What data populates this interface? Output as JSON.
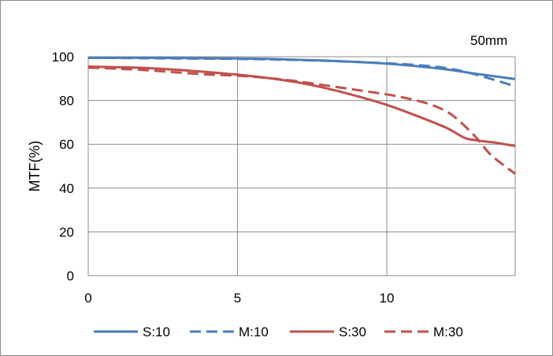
{
  "chart_data": {
    "type": "line",
    "annotation": "50mm",
    "ylabel": "MTF(%)",
    "xlim": [
      0,
      14.3
    ],
    "ylim": [
      0,
      100
    ],
    "x_ticks": [
      0,
      5,
      10
    ],
    "y_ticks": [
      0,
      20,
      40,
      60,
      80,
      100
    ],
    "grid": true,
    "legend_position": "bottom",
    "series": [
      {
        "name": "S:10",
        "color": "#4a7ebb",
        "dash": "solid",
        "x": [
          0,
          1,
          2,
          3,
          4,
          5,
          6,
          7,
          8,
          9,
          10,
          11,
          12,
          13,
          14.3
        ],
        "y": [
          99.5,
          99.5,
          99.5,
          99.4,
          99.3,
          99.2,
          99.0,
          98.6,
          98.2,
          97.6,
          96.8,
          95.7,
          94.2,
          92.2,
          89.8
        ]
      },
      {
        "name": "M:10",
        "color": "#4a7ebb",
        "dash": "dashed",
        "x": [
          0,
          1,
          2,
          3,
          4,
          5,
          6,
          7,
          8,
          9,
          10,
          11,
          12,
          13,
          14.3
        ],
        "y": [
          99.5,
          99.4,
          99.3,
          99.2,
          99.1,
          99.0,
          98.8,
          98.5,
          98.1,
          97.6,
          97.0,
          96.2,
          94.8,
          91.8,
          86.5
        ]
      },
      {
        "name": "S:30",
        "color": "#c0504d",
        "dash": "solid",
        "x": [
          0,
          1,
          2,
          3,
          4,
          5,
          6,
          7,
          8,
          9,
          10,
          11,
          12,
          12.6,
          13,
          13.7,
          14.3
        ],
        "y": [
          95.5,
          95.2,
          94.8,
          94.0,
          93.0,
          91.8,
          90.3,
          88.3,
          85.5,
          82.0,
          78.0,
          73.0,
          67.5,
          63.0,
          61.8,
          60.6,
          59.2
        ]
      },
      {
        "name": "M:30",
        "color": "#c0504d",
        "dash": "dashed",
        "x": [
          0,
          1,
          2,
          3,
          4,
          5,
          6,
          7,
          8,
          9,
          10,
          10.5,
          11,
          11.5,
          12,
          12.4,
          13,
          13.5,
          14.3
        ],
        "y": [
          95.0,
          94.5,
          93.8,
          92.8,
          91.9,
          91.3,
          90.3,
          88.8,
          86.8,
          84.8,
          82.8,
          81.5,
          80.0,
          78.0,
          75.0,
          71.0,
          63.0,
          55.0,
          46.5
        ]
      }
    ]
  }
}
